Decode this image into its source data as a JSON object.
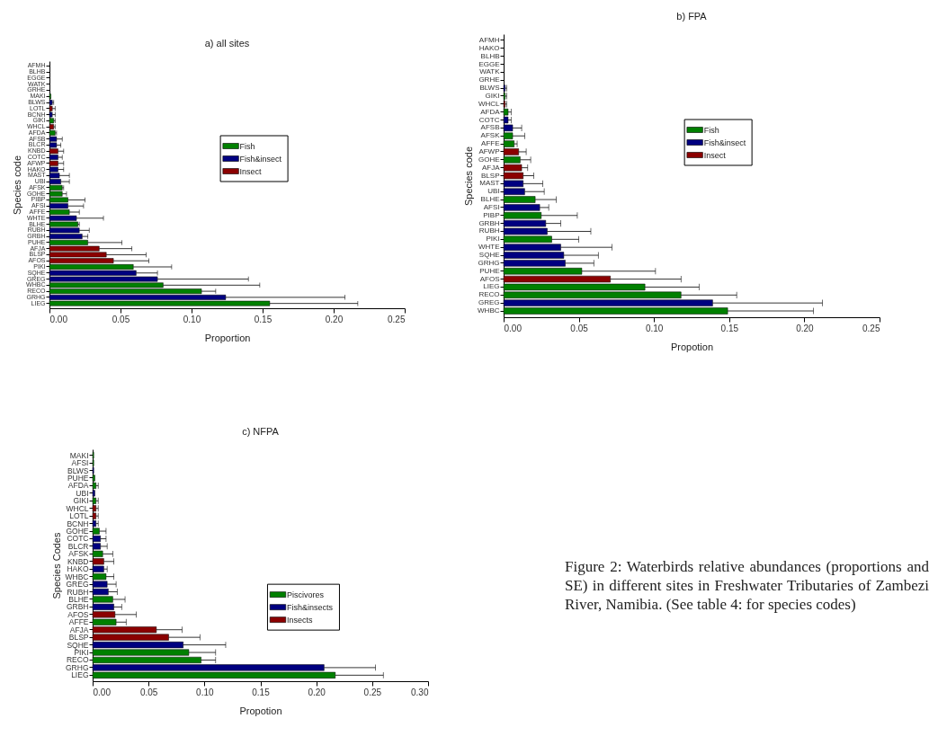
{
  "chart_data": [
    {
      "type": "bar",
      "orientation": "horizontal",
      "title": "a) all sites",
      "xlabel": "Proportion",
      "ylabel": "Species code",
      "legend": "right",
      "categories": [
        "AFMH",
        "BLHB",
        "EGGE",
        "WATK",
        "GRHE",
        "MAKI",
        "BLWS",
        "LOTL",
        "BCNH",
        "GIKI",
        "WHCL",
        "AFDA",
        "AFSB",
        "BLCR",
        "KNBD",
        "COTC",
        "AFWP",
        "HAKO",
        "MAST",
        "UBI",
        "AFSK",
        "GOHE",
        "PIBP",
        "AFSI",
        "AFFE",
        "WHTE",
        "BLHE",
        "RUBH",
        "GRBH",
        "PUHE",
        "AFJA",
        "BLSP",
        "AFOS",
        "PIKI",
        "SQHE",
        "GREG",
        "WHBC",
        "RECO",
        "GRHG",
        "LIEG"
      ],
      "xlim": [
        0,
        0.25
      ],
      "xticks": [
        {
          "value": 0,
          "label": "0.00"
        },
        0.05,
        {
          "value": 0.1,
          "label": "0.10"
        },
        0.15,
        {
          "value": 0.2,
          "label": "0.20"
        },
        0.25
      ],
      "series": [
        {
          "name": "Fish",
          "color": "#008000",
          "values": [
            null,
            null,
            null,
            null,
            null,
            0.001,
            null,
            null,
            null,
            0.003,
            null,
            0.004,
            null,
            null,
            null,
            null,
            null,
            null,
            null,
            null,
            0.009,
            0.009,
            0.013,
            null,
            0.014,
            null,
            0.02,
            null,
            null,
            0.027,
            null,
            null,
            null,
            0.059,
            null,
            null,
            0.08,
            0.107,
            null,
            0.155
          ],
          "errors": [
            null,
            null,
            null,
            null,
            null,
            null,
            null,
            null,
            null,
            [
              0.003,
              0.004
            ],
            null,
            [
              0.004,
              0.005
            ],
            null,
            null,
            null,
            null,
            null,
            null,
            null,
            null,
            [
              0.009,
              0.01
            ],
            [
              0.009,
              0.012
            ],
            [
              0.013,
              0.025
            ],
            null,
            [
              0.014,
              0.021
            ],
            null,
            [
              0.02,
              0.021
            ],
            null,
            null,
            [
              0.027,
              0.051
            ],
            null,
            null,
            null,
            [
              0.059,
              0.086
            ],
            null,
            null,
            [
              0.08,
              0.148
            ],
            [
              0.107,
              0.117
            ],
            null,
            [
              0.155,
              0.217
            ]
          ]
        },
        {
          "name": "Fish&insect",
          "color": "#000080",
          "values": [
            null,
            null,
            null,
            null,
            null,
            null,
            0.002,
            null,
            0.002,
            null,
            null,
            null,
            0.005,
            0.005,
            null,
            0.006,
            null,
            0.006,
            0.007,
            0.008,
            null,
            null,
            null,
            0.013,
            null,
            0.019,
            null,
            0.021,
            0.023,
            null,
            null,
            null,
            null,
            null,
            0.061,
            0.076,
            null,
            null,
            0.124,
            null
          ],
          "errors": [
            null,
            null,
            null,
            null,
            null,
            null,
            [
              0.002,
              0.003
            ],
            null,
            [
              0.002,
              0.004
            ],
            null,
            null,
            null,
            [
              0.005,
              0.009
            ],
            [
              0.005,
              0.008
            ],
            null,
            [
              0.006,
              0.009
            ],
            null,
            [
              0.006,
              0.01
            ],
            [
              0.007,
              0.014
            ],
            [
              0.008,
              0.014
            ],
            null,
            null,
            null,
            [
              0.013,
              0.024
            ],
            null,
            [
              0.019,
              0.038
            ],
            null,
            [
              0.021,
              0.028
            ],
            [
              0.023,
              0.027
            ],
            null,
            null,
            null,
            null,
            null,
            [
              0.061,
              0.076
            ],
            [
              0.076,
              0.14
            ],
            null,
            null,
            [
              0.124,
              0.208
            ],
            null
          ]
        },
        {
          "name": "Insect",
          "color": "#8b0000",
          "values": [
            null,
            null,
            null,
            null,
            null,
            null,
            null,
            0.002,
            null,
            null,
            0.003,
            null,
            null,
            null,
            0.006,
            null,
            0.006,
            null,
            null,
            null,
            null,
            null,
            null,
            null,
            null,
            null,
            null,
            null,
            null,
            null,
            0.035,
            0.04,
            0.045,
            null,
            null,
            null,
            null,
            null,
            null,
            null
          ],
          "errors": [
            null,
            null,
            null,
            null,
            null,
            null,
            null,
            [
              0.002,
              0.004
            ],
            null,
            null,
            [
              0.003,
              0.004
            ],
            null,
            null,
            null,
            [
              0.006,
              0.01
            ],
            null,
            [
              0.006,
              0.01
            ],
            null,
            null,
            null,
            null,
            null,
            null,
            null,
            null,
            null,
            null,
            null,
            null,
            null,
            [
              0.035,
              0.058
            ],
            [
              0.04,
              0.068
            ],
            [
              0.045,
              0.07
            ],
            null,
            null,
            null,
            null,
            null,
            null,
            null
          ]
        }
      ]
    },
    {
      "type": "bar",
      "orientation": "horizontal",
      "title": "b)  FPA",
      "xlabel": "Propotion",
      "ylabel": "Species code",
      "legend": "right",
      "categories": [
        "AFMH",
        "HAKO",
        "BLHB",
        "EGGE",
        "WATK",
        "GRHE",
        "BLWS",
        "GIKI",
        "WHCL",
        "AFDA",
        "COTC",
        "AFSB",
        "AFSK",
        "AFFE",
        "AFWP",
        "GOHE",
        "AFJA",
        "BLSP",
        "MAST",
        "UBI",
        "BLHE",
        "AFSI",
        "PIBP",
        "GRBH",
        "RUBH",
        "PIKI",
        "WHTE",
        "SQHE",
        "GRHG",
        "PUHE",
        "AFOS",
        "LIEG",
        "RECO",
        "GREG",
        "WHBC"
      ],
      "xlim": [
        0,
        0.25
      ],
      "xticks": [
        {
          "value": 0,
          "label": "0.00"
        },
        0.05,
        {
          "value": 0.1,
          "label": "0.10"
        },
        0.15,
        {
          "value": 0.2,
          "label": "0.20"
        },
        0.25
      ],
      "series": [
        {
          "name": "Fish",
          "color": "#008000",
          "values": [
            null,
            null,
            null,
            null,
            null,
            null,
            null,
            0.001,
            null,
            0.003,
            null,
            null,
            0.006,
            0.007,
            null,
            0.011,
            null,
            null,
            null,
            null,
            0.021,
            null,
            0.025,
            null,
            null,
            0.032,
            null,
            null,
            null,
            0.052,
            null,
            0.094,
            0.118,
            null,
            0.149
          ],
          "errors": [
            null,
            null,
            null,
            null,
            null,
            null,
            null,
            [
              0.001,
              0.002
            ],
            null,
            [
              0.003,
              0.005
            ],
            null,
            null,
            [
              0.006,
              0.014
            ],
            [
              0.007,
              0.009
            ],
            null,
            [
              0.011,
              0.018
            ],
            null,
            null,
            null,
            null,
            [
              0.021,
              0.035
            ],
            null,
            [
              0.025,
              0.049
            ],
            null,
            null,
            [
              0.032,
              0.05
            ],
            null,
            null,
            null,
            [
              0.052,
              0.101
            ],
            null,
            [
              0.094,
              0.13
            ],
            [
              0.118,
              0.155
            ],
            null,
            [
              0.149,
              0.206
            ]
          ]
        },
        {
          "name": "Fish&insect",
          "color": "#000080",
          "values": [
            null,
            null,
            null,
            null,
            null,
            null,
            0.001,
            null,
            null,
            null,
            0.003,
            0.006,
            null,
            null,
            null,
            null,
            null,
            null,
            0.013,
            0.014,
            null,
            0.024,
            null,
            0.028,
            0.029,
            null,
            0.038,
            0.04,
            0.041,
            null,
            null,
            null,
            null,
            0.139,
            null
          ],
          "errors": [
            null,
            null,
            null,
            null,
            null,
            null,
            [
              0.001,
              0.002
            ],
            null,
            null,
            null,
            [
              0.003,
              0.005
            ],
            [
              0.006,
              0.012
            ],
            null,
            null,
            null,
            null,
            null,
            null,
            [
              0.013,
              0.026
            ],
            [
              0.014,
              0.027
            ],
            null,
            [
              0.024,
              0.03
            ],
            null,
            [
              0.028,
              0.038
            ],
            [
              0.029,
              0.058
            ],
            null,
            [
              0.038,
              0.072
            ],
            [
              0.04,
              0.063
            ],
            [
              0.041,
              0.06
            ],
            null,
            null,
            null,
            null,
            [
              0.139,
              0.212
            ],
            null
          ]
        },
        {
          "name": "Insect",
          "color": "#8b0000",
          "values": [
            null,
            null,
            null,
            null,
            null,
            null,
            null,
            null,
            0.001,
            null,
            null,
            null,
            null,
            null,
            0.01,
            null,
            0.012,
            0.013,
            null,
            null,
            null,
            null,
            null,
            null,
            null,
            null,
            null,
            null,
            null,
            null,
            0.071,
            null,
            null,
            null,
            null
          ],
          "errors": [
            null,
            null,
            null,
            null,
            null,
            null,
            null,
            null,
            [
              0.001,
              0.002
            ],
            null,
            null,
            null,
            null,
            null,
            [
              0.01,
              0.015
            ],
            null,
            [
              0.012,
              0.016
            ],
            [
              0.013,
              0.02
            ],
            null,
            null,
            null,
            null,
            null,
            null,
            null,
            null,
            null,
            null,
            null,
            null,
            [
              0.071,
              0.118
            ],
            null,
            null,
            null,
            null
          ]
        }
      ]
    },
    {
      "type": "bar",
      "orientation": "horizontal",
      "title": "c) NFPA",
      "xlabel": "Propotion",
      "ylabel": "Species Codes",
      "legend": "bottom right",
      "annotations": [
        "Figure 2: Waterbirds  relative abundances (proportions and SE) in different sites in Freshwater Tributaries of Zambezi River, Namibia.  (See table 4: for species codes)"
      ],
      "categories": [
        "MAKI",
        "AFSI",
        "BLWS",
        "PUHE",
        "AFDA",
        "UBI",
        "GIKI",
        "WHCL",
        "LOTL",
        "BCNH",
        "GOHE",
        "COTC",
        "BLCR",
        "AFSK",
        "KNBD",
        "HAKO",
        "WHBC",
        "GREG",
        "RUBH",
        "BLHE",
        "GRBH",
        "AFOS",
        "AFFE",
        "AFJA",
        "BLSP",
        "SQHE",
        "PIKI",
        "RECO",
        "GRHG",
        "LIEG"
      ],
      "xlim": [
        0,
        0.3
      ],
      "xticks": [
        {
          "value": 0,
          "label": "0.00"
        },
        0.05,
        {
          "value": 0.1,
          "label": "0.10"
        },
        0.15,
        {
          "value": 0.2,
          "label": "0.20"
        },
        0.25,
        {
          "value": 0.3,
          "label": "0.30"
        }
      ],
      "series": [
        {
          "name": "Piscivores",
          "color": "#008000",
          "values": [
            0.001,
            0.001,
            null,
            0.002,
            0.003,
            null,
            0.003,
            null,
            null,
            null,
            0.006,
            null,
            null,
            0.009,
            null,
            null,
            0.012,
            null,
            null,
            0.018,
            null,
            null,
            0.021,
            null,
            null,
            null,
            0.086,
            0.097,
            null,
            0.217
          ],
          "errors": [
            null,
            null,
            null,
            null,
            [
              0.003,
              0.005
            ],
            null,
            [
              0.003,
              0.005
            ],
            null,
            null,
            null,
            [
              0.006,
              0.012
            ],
            null,
            null,
            [
              0.009,
              0.018
            ],
            null,
            null,
            [
              0.012,
              0.019
            ],
            null,
            null,
            [
              0.018,
              0.029
            ],
            null,
            null,
            [
              0.021,
              0.03
            ],
            null,
            null,
            null,
            [
              0.086,
              0.11
            ],
            [
              0.097,
              0.11
            ],
            null,
            [
              0.217,
              0.26
            ]
          ]
        },
        {
          "name": "Fish&insects",
          "color": "#000080",
          "values": [
            null,
            null,
            0.001,
            null,
            null,
            0.002,
            null,
            null,
            null,
            0.003,
            null,
            0.007,
            0.007,
            null,
            null,
            0.01,
            null,
            0.013,
            0.014,
            null,
            0.019,
            null,
            null,
            null,
            null,
            0.081,
            null,
            null,
            0.207,
            null
          ],
          "errors": [
            null,
            null,
            null,
            null,
            null,
            null,
            null,
            null,
            null,
            [
              0.003,
              0.005
            ],
            null,
            [
              0.007,
              0.012
            ],
            [
              0.007,
              0.013
            ],
            null,
            null,
            [
              0.01,
              0.013
            ],
            null,
            [
              0.013,
              0.021
            ],
            [
              0.014,
              0.022
            ],
            null,
            [
              0.019,
              0.026
            ],
            null,
            null,
            null,
            null,
            [
              0.081,
              0.119
            ],
            null,
            null,
            [
              0.207,
              0.253
            ],
            null
          ]
        },
        {
          "name": "Insects",
          "color": "#8b0000",
          "values": [
            null,
            null,
            null,
            null,
            null,
            null,
            null,
            0.003,
            0.003,
            null,
            null,
            null,
            null,
            null,
            0.01,
            null,
            null,
            null,
            null,
            null,
            null,
            0.02,
            null,
            0.057,
            0.068,
            null,
            null,
            null,
            null,
            null
          ],
          "errors": [
            null,
            null,
            null,
            null,
            null,
            null,
            null,
            [
              0.003,
              0.005
            ],
            [
              0.003,
              0.005
            ],
            null,
            null,
            null,
            null,
            null,
            [
              0.01,
              0.019
            ],
            null,
            null,
            null,
            null,
            null,
            null,
            [
              0.02,
              0.039
            ],
            null,
            [
              0.057,
              0.08
            ],
            [
              0.068,
              0.096
            ],
            null,
            null,
            null,
            null,
            null
          ]
        }
      ]
    }
  ]
}
